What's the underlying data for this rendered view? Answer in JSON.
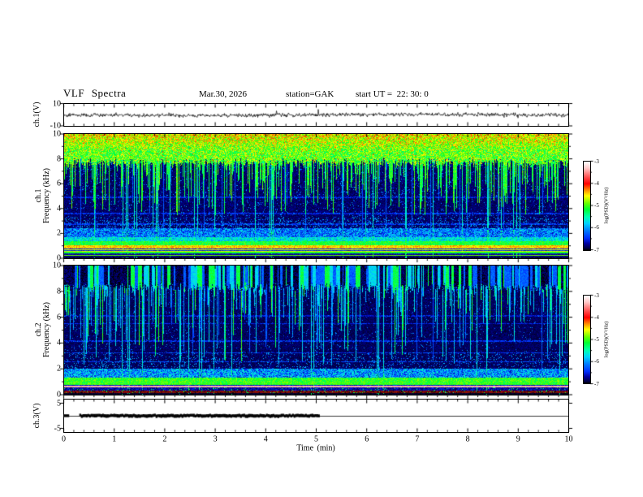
{
  "header": {
    "title": "VLF Spectra",
    "date": "Mar.30, 2026",
    "station": "station=GAK",
    "start_ut": "start UT =  22: 30: 0"
  },
  "panels": {
    "waveform": {
      "ylabel": "ch.1(V)",
      "yticks": [
        "10",
        "-10"
      ]
    },
    "spec1": {
      "ylabel_line1": "ch.1",
      "ylabel_line2": "Frequency (kHz)",
      "yticks": [
        "10",
        "8",
        "6",
        "4",
        "2",
        "0"
      ]
    },
    "spec2": {
      "ylabel_line1": "ch.2",
      "ylabel_line2": "Frequency (kHz)",
      "yticks": [
        "10",
        "8",
        "6",
        "4",
        "2",
        "0"
      ]
    },
    "ch3": {
      "ylabel": "ch.3(V)",
      "yticks": [
        "5",
        "-5"
      ]
    }
  },
  "xaxis": {
    "label": "Time  (min)",
    "ticks": [
      "0",
      "1",
      "2",
      "3",
      "4",
      "5",
      "6",
      "7",
      "8",
      "9",
      "10"
    ]
  },
  "colorbars": [
    {
      "ticks": [
        "-3",
        "-4",
        "-5",
        "-6",
        "-7"
      ],
      "label": "log(PSD)(V²/Hz)"
    },
    {
      "ticks": [
        "-3",
        "-4",
        "-5",
        "-6",
        "-7"
      ],
      "label": "log(PSD)(V²/Hz)"
    }
  ],
  "chart_data": {
    "type": "heatmap",
    "title": "VLF Spectra, station GAK, start UT 22:30:0, Mar.30 2026",
    "xlabel": "Time (min)",
    "xlim": [
      0,
      10
    ],
    "zlabel": "log(PSD)(V2/Hz)",
    "zlim": [
      -7,
      -3
    ],
    "colormap_stops": [
      [
        -3.0,
        "#ffffff"
      ],
      [
        -3.3,
        "#ffc8c8"
      ],
      [
        -3.7,
        "#ff5050"
      ],
      [
        -4.0,
        "#ff0000"
      ],
      [
        -4.3,
        "#ff9000"
      ],
      [
        -4.55,
        "#ffff00"
      ],
      [
        -4.9,
        "#60ff00"
      ],
      [
        -5.15,
        "#00ff30"
      ],
      [
        -5.5,
        "#00ffb0"
      ],
      [
        -5.8,
        "#00d0ff"
      ],
      [
        -6.1,
        "#0080ff"
      ],
      [
        -6.45,
        "#0030ff"
      ],
      [
        -6.7,
        "#0000a0"
      ],
      [
        -6.92,
        "#000040"
      ],
      [
        -7.0,
        "#000000"
      ]
    ],
    "panels": [
      {
        "name": "ch.1 waveform",
        "type": "line",
        "ylim": [
          -10,
          10
        ],
        "baseline_v": 0,
        "noise_amp_v": 2.5,
        "spike_amp_v": 8,
        "spike_prob": 0.013
      },
      {
        "name": "ch.1 spectrogram",
        "type": "heatmap",
        "ylim": [
          0,
          10
        ],
        "top_band": {
          "f_lo": 7.7,
          "value": -4.95,
          "noise": 0.5,
          "streak_prob": 0.5,
          "streak_max_depth": 4.4,
          "streak_value": -5.15
        },
        "background": {
          "value": -6.95,
          "noise": 0.25,
          "speckle_prob": 0.05,
          "speckle_value": -6.1,
          "vline_prob": 0.09,
          "vline_value": -6.3,
          "bright_vline_prob": 0.035,
          "bright_vline_value": -5.6
        },
        "hlines": [
          {
            "f": 2.15,
            "value": -6.35
          },
          {
            "f": 2.75,
            "value": -6.4
          },
          {
            "f": 3.6,
            "value": -6.45
          },
          {
            "f": 4.9,
            "value": -6.5
          }
        ],
        "low_bands": [
          {
            "f_lo": 1.7,
            "f_hi": 2.45,
            "value": -6.15,
            "noise": 0.55
          },
          {
            "f_lo": 1.35,
            "f_hi": 1.7,
            "value": -5.7,
            "noise": 0.45
          },
          {
            "f_lo": 1.05,
            "f_hi": 1.35,
            "value": -5.15,
            "noise": 0.3
          },
          {
            "f_lo": 0.8,
            "f_hi": 1.05,
            "value": -4.45,
            "noise": 0.25
          },
          {
            "f_lo": 0.55,
            "f_hi": 0.8,
            "stripes": true,
            "value": -4.6,
            "alt_value": -6.5,
            "noise": 0.2
          },
          {
            "f_lo": 0.35,
            "f_hi": 0.55,
            "value": -6.6,
            "noise": 0.2,
            "line_f": 0.45,
            "line_value": -5.1
          },
          {
            "f_lo": 0.15,
            "f_hi": 0.35,
            "value": -6.75,
            "noise": 0.15,
            "line_f": 0.24,
            "line_value": -4.9
          },
          {
            "f_lo": 0.0,
            "f_hi": 0.15,
            "value": -6.9,
            "noise": 0.1
          }
        ]
      },
      {
        "name": "ch.2 spectrogram",
        "type": "heatmap",
        "ylim": [
          0,
          10
        ],
        "top_band": {
          "f_lo": 8.1,
          "values": [
            -6.9,
            -6.85,
            -6.25,
            -5.75,
            -5.2
          ],
          "persist": 0.55,
          "streak_prob": 0.42,
          "streak_max_depth": 5.8,
          "streak_value": -5.85,
          "green_streak_prob": 0.25,
          "green_streak_value": -5.2
        },
        "background": {
          "value": -6.95,
          "noise": 0.2,
          "speckle_prob": 0.035,
          "speckle_value": -6.15,
          "vline_prob": 0.07,
          "vline_value": -6.3,
          "bright_vline_prob": 0.03,
          "bright_vline_value": -5.7
        },
        "hlines": [
          {
            "f": 2.55,
            "value": -6.35
          },
          {
            "f": 3.25,
            "value": -6.4
          },
          {
            "f": 4.15,
            "value": -6.45
          },
          {
            "f": 5.5,
            "value": -6.5
          },
          {
            "f": 6.1,
            "value": -6.55
          }
        ],
        "low_bands": [
          {
            "f_lo": 1.35,
            "f_hi": 2.0,
            "value": -6.05,
            "noise": 0.6
          },
          {
            "f_lo": 0.8,
            "f_hi": 1.35,
            "value": -5.05,
            "noise": 0.3
          },
          {
            "f_lo": 0.55,
            "f_hi": 0.8,
            "stripes": true,
            "value": -5.0,
            "alt_value": -6.6,
            "noise": 0.2,
            "line_f": 0.62,
            "line_value": -3.4
          },
          {
            "f_lo": 0.3,
            "f_hi": 0.55,
            "value": -6.7,
            "noise": 0.2,
            "speckle_prob": 0.05,
            "speckle_value": -5.2
          },
          {
            "f_lo": 0.1,
            "f_hi": 0.3,
            "maroon": true
          },
          {
            "f_lo": 0.0,
            "f_hi": 0.1,
            "value": -6.95,
            "noise": 0.05
          }
        ]
      },
      {
        "name": "ch.3 level",
        "type": "line",
        "ylim": [
          -5,
          5
        ],
        "value_v": 0,
        "thick_segment_min": [
          0.3,
          5.05
        ],
        "left_mark_min": [
          0,
          0.1
        ]
      }
    ]
  }
}
